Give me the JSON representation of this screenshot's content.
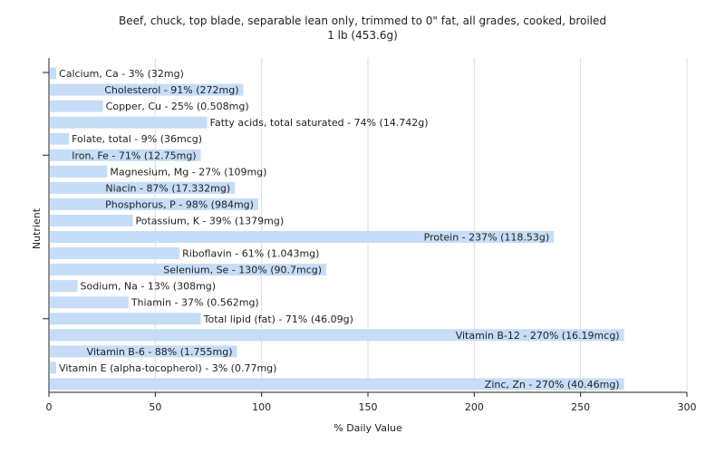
{
  "chart": {
    "title_line1": "Beef, chuck, top blade, separable lean only, trimmed to 0\" fat, all grades, cooked, broiled",
    "title_line2": "1 lb (453.6g)"
  },
  "chart_data": {
    "type": "bar",
    "orientation": "horizontal",
    "title": "Beef, chuck, top blade, separable lean only, trimmed to 0\" fat, all grades, cooked, broiled",
    "subtitle": "1 lb (453.6g)",
    "xlabel": "% Daily Value",
    "ylabel": "Nutrient",
    "xlim": [
      0,
      300
    ],
    "xticks": [
      0,
      50,
      100,
      150,
      200,
      250,
      300
    ],
    "grid": true,
    "bar_color": "#c6dcf7",
    "categories": [
      "Calcium, Ca",
      "Cholesterol",
      "Copper, Cu",
      "Fatty acids, total saturated",
      "Folate, total",
      "Iron, Fe",
      "Magnesium, Mg",
      "Niacin",
      "Phosphorus, P",
      "Potassium, K",
      "Protein",
      "Riboflavin",
      "Selenium, Se",
      "Sodium, Na",
      "Thiamin",
      "Total lipid (fat)",
      "Vitamin B-12",
      "Vitamin B-6",
      "Vitamin E (alpha-tocopherol)",
      "Zinc, Zn"
    ],
    "values": [
      3,
      91,
      25,
      74,
      9,
      71,
      27,
      87,
      98,
      39,
      237,
      61,
      130,
      13,
      37,
      71,
      270,
      88,
      3,
      270
    ],
    "labels": [
      "Calcium, Ca - 3% (32mg)",
      "Cholesterol - 91% (272mg)",
      "Copper, Cu - 25% (0.508mg)",
      "Fatty acids, total saturated - 74% (14.742g)",
      "Folate, total - 9% (36mcg)",
      "Iron, Fe - 71% (12.75mg)",
      "Magnesium, Mg - 27% (109mg)",
      "Niacin - 87% (17.332mg)",
      "Phosphorus, P - 98% (984mg)",
      "Potassium, K - 39% (1379mg)",
      "Protein - 237% (118.53g)",
      "Riboflavin - 61% (1.043mg)",
      "Selenium, Se - 130% (90.7mcg)",
      "Sodium, Na - 13% (308mg)",
      "Thiamin - 37% (0.562mg)",
      "Total lipid (fat) - 71% (46.09g)",
      "Vitamin B-12 - 270% (16.19mcg)",
      "Vitamin B-6 - 88% (1.755mg)",
      "Vitamin E (alpha-tocopherol) - 3% (0.77mg)",
      "Zinc, Zn - 270% (40.46mg)"
    ]
  }
}
